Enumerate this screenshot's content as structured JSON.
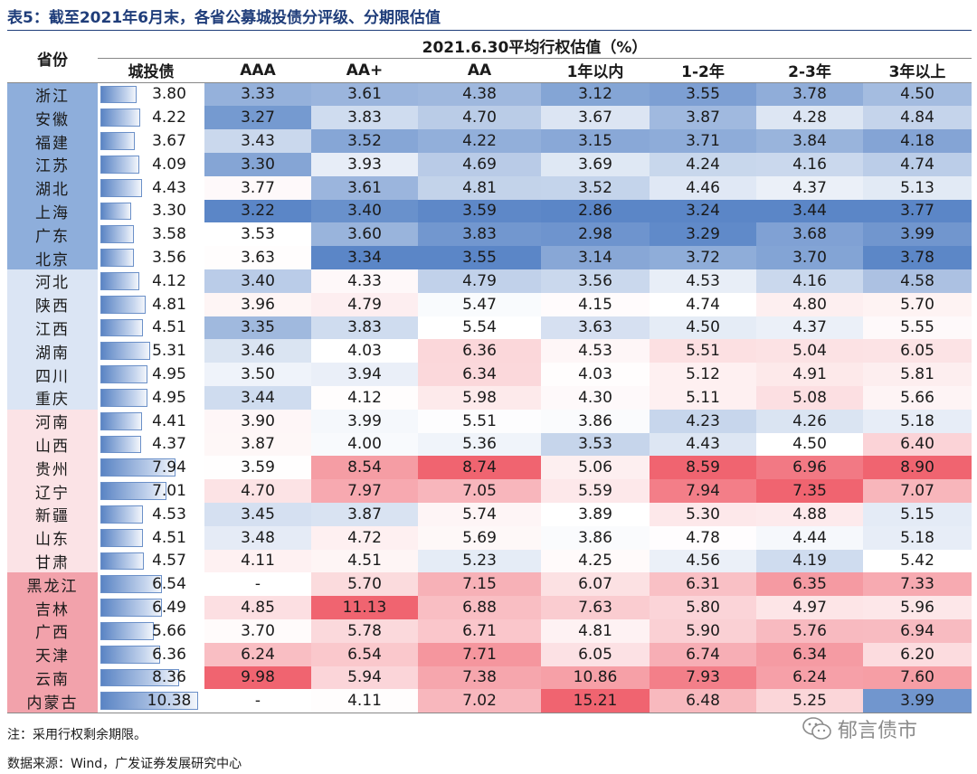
{
  "title": "表5：截至2021年6月末，各省公募城投债分评级、分期限估值",
  "header": {
    "province_label": "省份",
    "group_label": "2021.6.30平均行权估值（%）",
    "columns": [
      "城投债",
      "AAA",
      "AA+",
      "AA",
      "1年以内",
      "1-2年",
      "2-3年",
      "3年以上"
    ]
  },
  "rows": [
    {
      "province": "浙江",
      "values": [
        "3.80",
        "3.33",
        "3.61",
        "4.38",
        "3.12",
        "3.55",
        "3.78",
        "4.50"
      ]
    },
    {
      "province": "安徽",
      "values": [
        "4.22",
        "3.27",
        "3.83",
        "4.70",
        "3.67",
        "3.87",
        "4.28",
        "4.84"
      ]
    },
    {
      "province": "福建",
      "values": [
        "3.67",
        "3.43",
        "3.52",
        "4.22",
        "3.15",
        "3.71",
        "3.84",
        "4.18"
      ]
    },
    {
      "province": "江苏",
      "values": [
        "4.09",
        "3.30",
        "3.93",
        "4.69",
        "3.69",
        "4.24",
        "4.16",
        "4.74"
      ]
    },
    {
      "province": "湖北",
      "values": [
        "4.43",
        "3.77",
        "3.61",
        "4.81",
        "3.52",
        "4.46",
        "4.37",
        "5.13"
      ]
    },
    {
      "province": "上海",
      "values": [
        "3.30",
        "3.22",
        "3.40",
        "3.59",
        "2.86",
        "3.24",
        "3.44",
        "3.77"
      ]
    },
    {
      "province": "广东",
      "values": [
        "3.58",
        "3.53",
        "3.60",
        "3.83",
        "2.98",
        "3.29",
        "3.68",
        "3.99"
      ]
    },
    {
      "province": "北京",
      "values": [
        "3.56",
        "3.63",
        "3.34",
        "3.55",
        "3.14",
        "3.72",
        "3.70",
        "3.78"
      ]
    },
    {
      "province": "河北",
      "values": [
        "4.12",
        "3.40",
        "4.33",
        "4.79",
        "3.56",
        "4.53",
        "4.16",
        "4.58"
      ]
    },
    {
      "province": "陕西",
      "values": [
        "4.81",
        "3.96",
        "4.79",
        "5.47",
        "4.15",
        "4.74",
        "4.80",
        "5.70"
      ]
    },
    {
      "province": "江西",
      "values": [
        "4.51",
        "3.35",
        "3.83",
        "5.54",
        "3.63",
        "4.50",
        "4.37",
        "5.55"
      ]
    },
    {
      "province": "湖南",
      "values": [
        "5.31",
        "3.46",
        "4.03",
        "6.36",
        "4.53",
        "5.51",
        "5.04",
        "6.05"
      ]
    },
    {
      "province": "四川",
      "values": [
        "4.95",
        "3.50",
        "3.94",
        "6.34",
        "4.03",
        "5.12",
        "4.91",
        "5.81"
      ]
    },
    {
      "province": "重庆",
      "values": [
        "4.95",
        "3.44",
        "4.12",
        "5.98",
        "4.30",
        "5.11",
        "5.08",
        "5.66"
      ]
    },
    {
      "province": "河南",
      "values": [
        "4.41",
        "3.90",
        "3.99",
        "5.51",
        "3.86",
        "4.23",
        "4.26",
        "5.18"
      ]
    },
    {
      "province": "山西",
      "values": [
        "4.37",
        "3.87",
        "4.00",
        "5.36",
        "3.53",
        "4.43",
        "4.50",
        "6.40"
      ]
    },
    {
      "province": "贵州",
      "values": [
        "7.94",
        "3.59",
        "8.54",
        "8.74",
        "5.06",
        "8.59",
        "6.96",
        "8.90"
      ]
    },
    {
      "province": "辽宁",
      "values": [
        "7.01",
        "4.70",
        "7.97",
        "7.05",
        "5.59",
        "7.94",
        "7.35",
        "7.07"
      ]
    },
    {
      "province": "新疆",
      "values": [
        "4.53",
        "3.45",
        "3.87",
        "5.74",
        "3.89",
        "5.30",
        "4.88",
        "5.15"
      ]
    },
    {
      "province": "山东",
      "values": [
        "4.51",
        "3.48",
        "4.72",
        "5.69",
        "3.86",
        "4.78",
        "4.44",
        "5.18"
      ]
    },
    {
      "province": "甘肃",
      "values": [
        "4.57",
        "4.11",
        "4.51",
        "5.23",
        "4.25",
        "4.56",
        "4.19",
        "5.42"
      ]
    },
    {
      "province": "黑龙江",
      "values": [
        "6.54",
        "-",
        "5.70",
        "7.15",
        "6.07",
        "6.31",
        "6.35",
        "7.33"
      ]
    },
    {
      "province": "吉林",
      "values": [
        "6.49",
        "4.85",
        "11.13",
        "6.88",
        "7.63",
        "5.80",
        "4.97",
        "5.96"
      ]
    },
    {
      "province": "广西",
      "values": [
        "5.66",
        "3.70",
        "5.78",
        "6.71",
        "4.81",
        "5.90",
        "5.76",
        "6.94"
      ]
    },
    {
      "province": "天津",
      "values": [
        "6.36",
        "6.24",
        "6.54",
        "7.71",
        "6.05",
        "6.74",
        "6.34",
        "6.20"
      ]
    },
    {
      "province": "云南",
      "values": [
        "8.36",
        "9.98",
        "5.94",
        "7.38",
        "10.86",
        "7.93",
        "6.24",
        "7.60"
      ]
    },
    {
      "province": "内蒙古",
      "values": [
        "10.38",
        "-",
        "4.11",
        "7.02",
        "15.21",
        "6.48",
        "5.25",
        "3.99"
      ]
    }
  ],
  "province_group_colors": [
    "#8eaedb",
    "#dbe5f4",
    "#fbe3e6",
    "#f2a2ab"
  ],
  "note": "注：采用行权剩余期限。",
  "source": "数据来源：Wind，广发证券发展研究中心",
  "watermark": "郁言债市",
  "watermark_icon": "wechat-icon"
}
